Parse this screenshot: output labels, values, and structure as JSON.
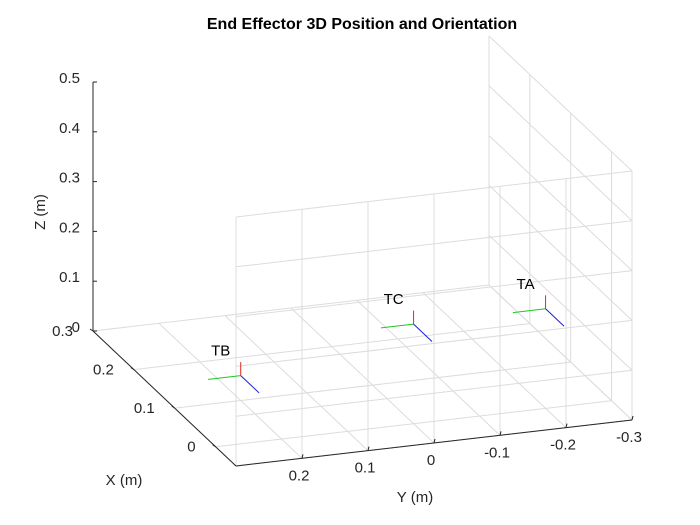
{
  "chart_data": {
    "type": "scatter3d",
    "title": "End Effector 3D Position and Orientation",
    "xlabel": "X (m)",
    "ylabel": "Y (m)",
    "zlabel": "Z (m)",
    "xlim": [
      -0.05,
      0.3
    ],
    "ylim": [
      -0.3,
      0.3
    ],
    "zlim": [
      0,
      0.5
    ],
    "x_ticks": [
      0,
      0.1,
      0.2,
      0.3
    ],
    "x_tick_labels": [
      "0",
      "0.1",
      "0.2",
      "0.3"
    ],
    "y_ticks": [
      0.2,
      0.1,
      0,
      -0.1,
      -0.2,
      -0.3
    ],
    "y_tick_labels": [
      "0.2",
      "0.1",
      "0",
      "-0.1",
      "-0.2",
      "-0.3"
    ],
    "z_ticks": [
      0,
      0.1,
      0.2,
      0.3,
      0.4,
      0.5
    ],
    "z_tick_labels": [
      "0",
      "0.1",
      "0.2",
      "0.3",
      "0.4",
      "0.5"
    ],
    "grid": true,
    "points": [
      {
        "name": "TA",
        "x": 0.0,
        "y": -0.2,
        "z": 0.2
      },
      {
        "name": "TB",
        "x": 0.1,
        "y": 0.2,
        "z": 0.05
      },
      {
        "name": "TC",
        "x": 0.0,
        "y": 0.0,
        "z": 0.2
      }
    ],
    "orientation_axes": [
      {
        "name": "x-axis",
        "color": "#e0281e"
      },
      {
        "name": "y-axis",
        "color": "#1ec81e"
      },
      {
        "name": "z-axis",
        "color": "#1e1ed2"
      }
    ]
  }
}
